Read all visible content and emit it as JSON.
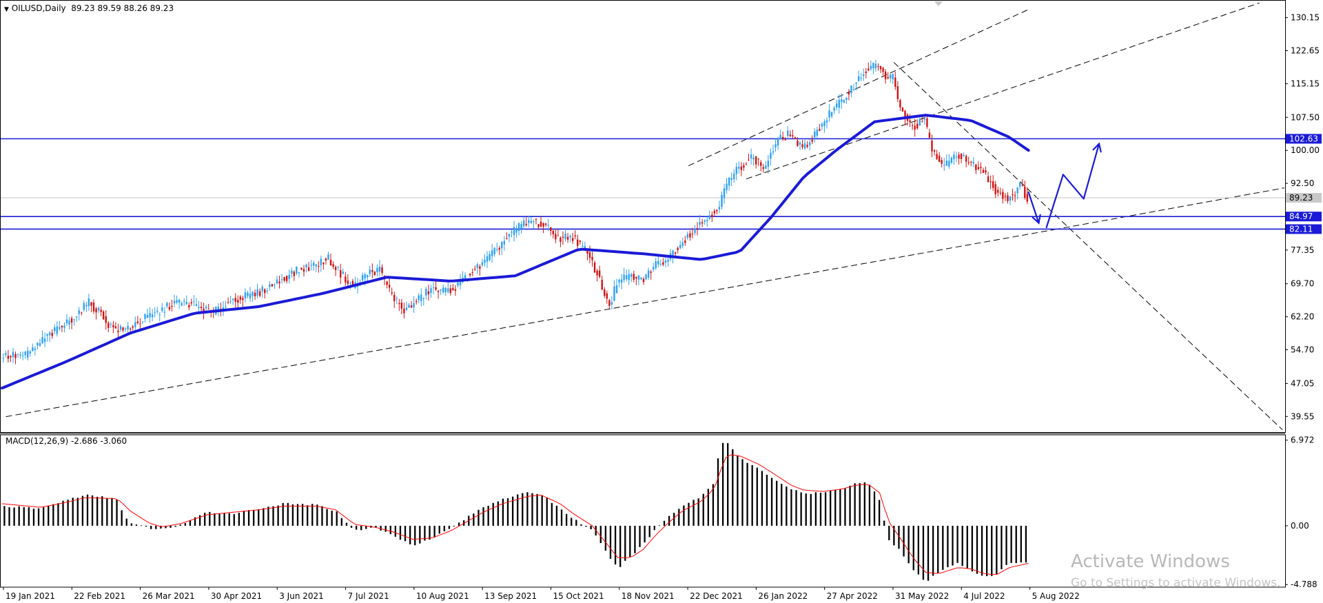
{
  "main_header": {
    "arrow": "▼",
    "symbol_tf": "OILUSD,Daily",
    "ohlc": "89.23 89.59 88.26 89.23"
  },
  "macd_header": {
    "label": "MACD(12,26,9)",
    "values": "-2.686 -3.060"
  },
  "watermark": {
    "line1": "Activate Windows",
    "line2": "Go to Settings to activate Windows."
  },
  "colors": {
    "bull": "#2ea0ef",
    "bear": "#d11111",
    "ma": "#1a1ad8",
    "level": "#1a1ad8",
    "signal": "#ff0000",
    "histogram": "#000000",
    "trend": "#000000",
    "price_line": "#c0c0c0"
  },
  "chart_data": [
    {
      "type": "candlestick",
      "symbol": "OILUSD",
      "timeframe": "Daily",
      "last": {
        "open": 89.23,
        "high": 89.59,
        "low": 88.26,
        "close": 89.23
      },
      "ylim": [
        36.0,
        134.0
      ],
      "y_ticks": [
        "130.15",
        "122.65",
        "115.15",
        "107.50",
        "100.00",
        "92.50",
        "77.35",
        "69.70",
        "62.20",
        "54.70",
        "47.05",
        "39.55"
      ],
      "x_ticks": [
        "19 Jan 2021",
        "22 Feb 2021",
        "26 Mar 2021",
        "30 Apr 2021",
        "3 Jun 2021",
        "7 Jul 2021",
        "10 Aug 2021",
        "13 Sep 2021",
        "15 Oct 2021",
        "18 Nov 2021",
        "22 Dec 2021",
        "26 Jan 2022",
        "27 Apr 2022",
        "31 May 2022",
        "4 Jul 2022",
        "5 Aug 2022"
      ],
      "price_path": [
        [
          0,
          53.2
        ],
        [
          0.02,
          53.5
        ],
        [
          0.035,
          57.5
        ],
        [
          0.05,
          60.5
        ],
        [
          0.06,
          63
        ],
        [
          0.068,
          65.5
        ],
        [
          0.078,
          63
        ],
        [
          0.085,
          60
        ],
        [
          0.095,
          59
        ],
        [
          0.11,
          61.5
        ],
        [
          0.125,
          63.5
        ],
        [
          0.135,
          65.5
        ],
        [
          0.15,
          65
        ],
        [
          0.165,
          63
        ],
        [
          0.18,
          66
        ],
        [
          0.2,
          67.5
        ],
        [
          0.215,
          70
        ],
        [
          0.23,
          72.5
        ],
        [
          0.245,
          74
        ],
        [
          0.255,
          75.5
        ],
        [
          0.265,
          72
        ],
        [
          0.275,
          69
        ],
        [
          0.285,
          72
        ],
        [
          0.295,
          73
        ],
        [
          0.305,
          67
        ],
        [
          0.315,
          63.5
        ],
        [
          0.325,
          66
        ],
        [
          0.335,
          68.5
        ],
        [
          0.345,
          68
        ],
        [
          0.355,
          69
        ],
        [
          0.365,
          72
        ],
        [
          0.375,
          74
        ],
        [
          0.385,
          77
        ],
        [
          0.395,
          80.5
        ],
        [
          0.405,
          83
        ],
        [
          0.415,
          84
        ],
        [
          0.425,
          82.5
        ],
        [
          0.435,
          80
        ],
        [
          0.445,
          80.5
        ],
        [
          0.455,
          77.5
        ],
        [
          0.465,
          72
        ],
        [
          0.47,
          67.5
        ],
        [
          0.475,
          65
        ],
        [
          0.48,
          70
        ],
        [
          0.49,
          71.5
        ],
        [
          0.5,
          70.5
        ],
        [
          0.51,
          74
        ],
        [
          0.52,
          75.5
        ],
        [
          0.53,
          79
        ],
        [
          0.54,
          82
        ],
        [
          0.55,
          84.5
        ],
        [
          0.56,
          87.5
        ],
        [
          0.565,
          92
        ],
        [
          0.575,
          96
        ],
        [
          0.585,
          98.5
        ],
        [
          0.595,
          96
        ],
        [
          0.605,
          102
        ],
        [
          0.615,
          104
        ],
        [
          0.625,
          100
        ],
        [
          0.635,
          104
        ],
        [
          0.645,
          108
        ],
        [
          0.655,
          111
        ],
        [
          0.665,
          115
        ],
        [
          0.675,
          118.5
        ],
        [
          0.685,
          119.5
        ],
        [
          0.69,
          116
        ],
        [
          0.695,
          117
        ],
        [
          0.7,
          110
        ],
        [
          0.71,
          105
        ],
        [
          0.72,
          107
        ],
        [
          0.725,
          100.5
        ],
        [
          0.735,
          96
        ],
        [
          0.745,
          99.5
        ],
        [
          0.755,
          97
        ],
        [
          0.765,
          95.5
        ],
        [
          0.775,
          91
        ],
        [
          0.785,
          89
        ],
        [
          0.795,
          92
        ],
        [
          0.8,
          89
        ]
      ],
      "moving_average": [
        [
          0,
          46
        ],
        [
          0.05,
          52
        ],
        [
          0.1,
          58.5
        ],
        [
          0.15,
          63
        ],
        [
          0.2,
          64.5
        ],
        [
          0.25,
          67.5
        ],
        [
          0.3,
          71.2
        ],
        [
          0.35,
          70.3
        ],
        [
          0.4,
          71.5
        ],
        [
          0.45,
          77.6
        ],
        [
          0.5,
          76.5
        ],
        [
          0.545,
          75.2
        ],
        [
          0.575,
          77
        ],
        [
          0.6,
          85
        ],
        [
          0.625,
          94
        ],
        [
          0.65,
          100
        ],
        [
          0.68,
          106.5
        ],
        [
          0.72,
          108
        ],
        [
          0.755,
          106.8
        ],
        [
          0.785,
          103
        ],
        [
          0.8,
          100
        ]
      ],
      "horizontal_levels": [
        {
          "value": 102.63,
          "label": "102.63"
        },
        {
          "value": 84.97,
          "label": "84.97"
        },
        {
          "value": 82.11,
          "label": "82.11"
        }
      ],
      "current_price": {
        "value": 89.23,
        "label": "89.23"
      },
      "trendlines": [
        {
          "from": [
            0.003,
            39.5
          ],
          "to": [
            0.82,
            82.0
          ]
        },
        {
          "from": [
            0.82,
            82.0
          ],
          "to": [
            1.0,
            91.5
          ]
        },
        {
          "from": [
            0.535,
            96.5
          ],
          "to": [
            0.8,
            132.0
          ]
        },
        {
          "from": [
            0.58,
            93.5
          ],
          "to": [
            0.98,
            133.5
          ]
        },
        {
          "from": [
            0.695,
            120.0
          ],
          "to": [
            0.998,
            36.5
          ]
        }
      ],
      "drawn_arrows": [
        {
          "points": [
            [
              0.8,
              90.5
            ],
            [
              0.808,
              83.5
            ]
          ],
          "head": "down"
        },
        {
          "points": [
            [
              0.814,
              82.5
            ],
            [
              0.827,
              94.5
            ],
            [
              0.843,
              89.0
            ],
            [
              0.855,
              101.5
            ]
          ],
          "head": "up"
        }
      ]
    },
    {
      "type": "bar",
      "name": "MACD(12,26,9)",
      "last_values": [
        -2.686,
        -3.06
      ],
      "ylim": [
        -5.0,
        7.35
      ],
      "y_ticks": [
        "6.972",
        "0.00",
        "-4.788"
      ],
      "histogram_path": [
        [
          0,
          1.6
        ],
        [
          0.03,
          1.4
        ],
        [
          0.05,
          2.1
        ],
        [
          0.065,
          2.5
        ],
        [
          0.09,
          2.2
        ],
        [
          0.095,
          0.8
        ],
        [
          0.1,
          0.2
        ],
        [
          0.115,
          -0.2
        ],
        [
          0.125,
          -0.3
        ],
        [
          0.14,
          0.1
        ],
        [
          0.16,
          1.1
        ],
        [
          0.18,
          1.0
        ],
        [
          0.2,
          1.4
        ],
        [
          0.22,
          1.8
        ],
        [
          0.245,
          1.7
        ],
        [
          0.26,
          1.2
        ],
        [
          0.275,
          -0.4
        ],
        [
          0.29,
          -0.1
        ],
        [
          0.305,
          -0.8
        ],
        [
          0.32,
          -1.6
        ],
        [
          0.335,
          -1.0
        ],
        [
          0.35,
          -0.2
        ],
        [
          0.36,
          0.5
        ],
        [
          0.375,
          1.5
        ],
        [
          0.39,
          2.2
        ],
        [
          0.41,
          2.7
        ],
        [
          0.42,
          2.6
        ],
        [
          0.435,
          1.4
        ],
        [
          0.445,
          0.6
        ],
        [
          0.46,
          -0.4
        ],
        [
          0.47,
          -2.0
        ],
        [
          0.48,
          -3.5
        ],
        [
          0.49,
          -2.5
        ],
        [
          0.5,
          -1.5
        ],
        [
          0.51,
          -0.2
        ],
        [
          0.52,
          0.8
        ],
        [
          0.53,
          1.6
        ],
        [
          0.545,
          2.4
        ],
        [
          0.555,
          3.5
        ],
        [
          0.56,
          6.7
        ],
        [
          0.565,
          6.9
        ],
        [
          0.575,
          5.5
        ],
        [
          0.59,
          4.6
        ],
        [
          0.605,
          3.6
        ],
        [
          0.615,
          3.0
        ],
        [
          0.625,
          2.6
        ],
        [
          0.64,
          2.7
        ],
        [
          0.655,
          3.0
        ],
        [
          0.665,
          3.5
        ],
        [
          0.675,
          3.5
        ],
        [
          0.685,
          2.0
        ],
        [
          0.69,
          -1.0
        ],
        [
          0.7,
          -2.0
        ],
        [
          0.71,
          -3.6
        ],
        [
          0.72,
          -4.6
        ],
        [
          0.73,
          -3.8
        ],
        [
          0.745,
          -3.0
        ],
        [
          0.755,
          -3.6
        ],
        [
          0.765,
          -4.2
        ],
        [
          0.775,
          -4.0
        ],
        [
          0.785,
          -3.0
        ],
        [
          0.8,
          -3.0
        ]
      ],
      "signal_path": [
        [
          0,
          1.8
        ],
        [
          0.03,
          1.5
        ],
        [
          0.05,
          1.9
        ],
        [
          0.065,
          2.3
        ],
        [
          0.09,
          2.2
        ],
        [
          0.1,
          1.2
        ],
        [
          0.115,
          0.2
        ],
        [
          0.125,
          -0.1
        ],
        [
          0.14,
          0.2
        ],
        [
          0.16,
          0.9
        ],
        [
          0.18,
          1.1
        ],
        [
          0.2,
          1.3
        ],
        [
          0.22,
          1.6
        ],
        [
          0.245,
          1.6
        ],
        [
          0.26,
          1.3
        ],
        [
          0.275,
          0.1
        ],
        [
          0.29,
          -0.1
        ],
        [
          0.305,
          -0.5
        ],
        [
          0.32,
          -1.1
        ],
        [
          0.335,
          -1.0
        ],
        [
          0.35,
          -0.4
        ],
        [
          0.36,
          0.2
        ],
        [
          0.375,
          1.1
        ],
        [
          0.39,
          1.8
        ],
        [
          0.41,
          2.4
        ],
        [
          0.42,
          2.5
        ],
        [
          0.435,
          1.8
        ],
        [
          0.445,
          1.0
        ],
        [
          0.46,
          0.0
        ],
        [
          0.47,
          -1.3
        ],
        [
          0.48,
          -2.6
        ],
        [
          0.49,
          -2.6
        ],
        [
          0.5,
          -1.9
        ],
        [
          0.51,
          -0.7
        ],
        [
          0.52,
          0.3
        ],
        [
          0.53,
          1.2
        ],
        [
          0.545,
          2.0
        ],
        [
          0.555,
          3.0
        ],
        [
          0.56,
          4.5
        ],
        [
          0.565,
          5.8
        ],
        [
          0.575,
          5.7
        ],
        [
          0.59,
          5.0
        ],
        [
          0.605,
          4.0
        ],
        [
          0.615,
          3.3
        ],
        [
          0.625,
          2.9
        ],
        [
          0.64,
          2.8
        ],
        [
          0.655,
          3.0
        ],
        [
          0.665,
          3.3
        ],
        [
          0.675,
          3.4
        ],
        [
          0.685,
          2.6
        ],
        [
          0.69,
          0.5
        ],
        [
          0.7,
          -1.0
        ],
        [
          0.71,
          -2.6
        ],
        [
          0.72,
          -3.8
        ],
        [
          0.73,
          -3.9
        ],
        [
          0.745,
          -3.4
        ],
        [
          0.755,
          -3.5
        ],
        [
          0.765,
          -3.9
        ],
        [
          0.775,
          -4.0
        ],
        [
          0.785,
          -3.4
        ],
        [
          0.8,
          -3.06
        ]
      ]
    }
  ]
}
